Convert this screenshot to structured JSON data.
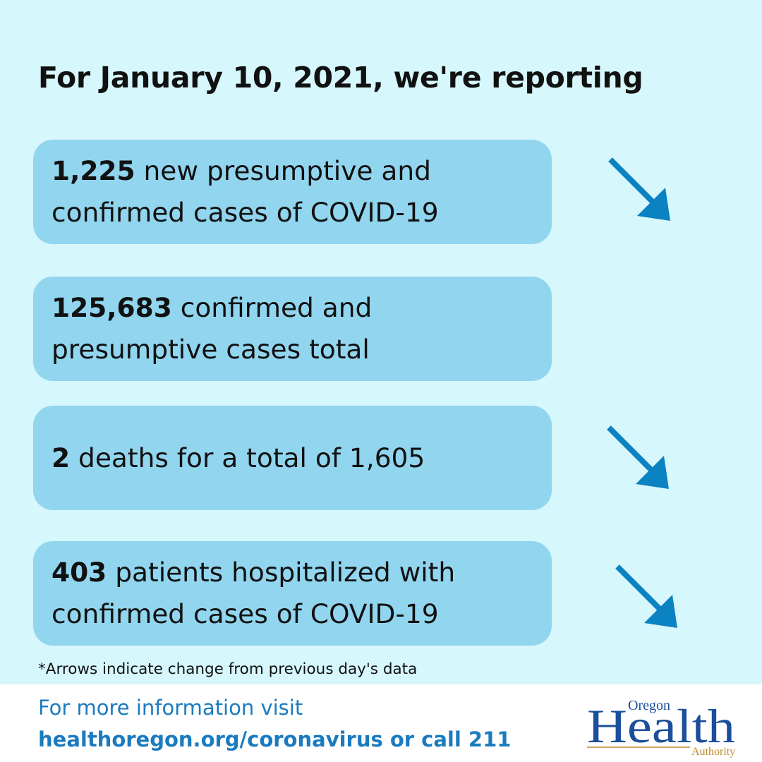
{
  "headline": "For January 10, 2021, we're reporting",
  "stats": [
    {
      "number": "1,225",
      "line1_text": " new presumptive and",
      "line2_text": "confirmed cases of COVID-19",
      "arrow": "down-right-arrow-icon"
    },
    {
      "number": "125,683",
      "line1_text": " confirmed and",
      "line2_text": "presumptive cases total",
      "arrow": null
    },
    {
      "number": "2",
      "line1_text": " deaths for a total of 1,605",
      "line2_text": "",
      "arrow": "down-right-arrow-icon"
    },
    {
      "number": "403",
      "line1_text": " patients hospitalized with",
      "line2_text": "confirmed cases of COVID-19",
      "arrow": "down-right-arrow-icon"
    }
  ],
  "footnote": "*Arrows indicate change from previous day's data",
  "footer": {
    "line1": "For more information visit",
    "line2": "healthoregon.org/coronavirus or call 211"
  },
  "logo": {
    "top_word": "Oregon",
    "main_word": "Health",
    "bottom_word": "Authority"
  },
  "colors": {
    "background": "#d6f7fc",
    "card": "#91d5ef",
    "arrow": "#0b82c1",
    "footer_text": "#1b7bbf",
    "logo_blue": "#1b4e9b",
    "logo_gold": "#c08a2c"
  }
}
